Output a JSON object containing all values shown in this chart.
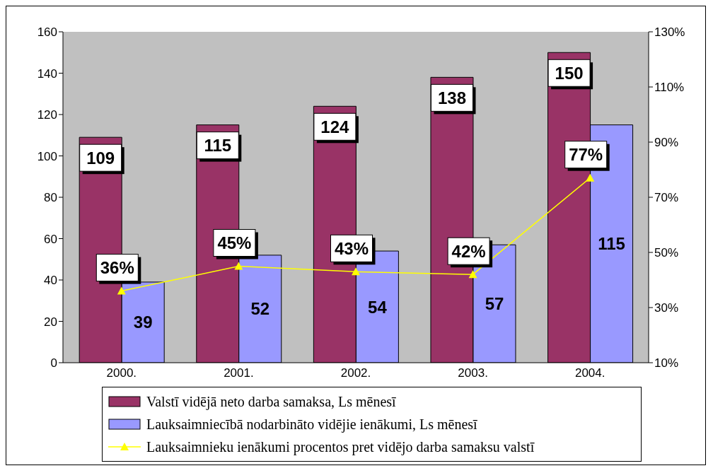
{
  "chart_data": {
    "type": "bar",
    "categories": [
      "2000.",
      "2001.",
      "2002.",
      "2003.",
      "2004."
    ],
    "series": [
      {
        "name": "Valstī vidējā neto darba samaksa, Ls mēnesī",
        "color": "#993366",
        "values": [
          109,
          115,
          124,
          138,
          150
        ],
        "value_labels": [
          "109",
          "115",
          "124",
          "138",
          "150"
        ]
      },
      {
        "name": "Lauksaimniecībā nodarbināto vidējie ienākumi, Ls mēnesī",
        "color": "#9999ff",
        "values": [
          39,
          52,
          54,
          57,
          115
        ],
        "value_labels": [
          "39",
          "52",
          "54",
          "57",
          "115"
        ]
      },
      {
        "name": "Lauksaimnieku ienākumi procentos pret vidējo darba samaksu valstī",
        "type": "line",
        "axis": "y2",
        "color": "#ffff00",
        "marker": "triangle",
        "values": [
          36,
          45,
          43,
          42,
          77
        ],
        "value_labels": [
          "36%",
          "45%",
          "43%",
          "42%",
          "77%"
        ]
      }
    ],
    "ylim": [
      0,
      160
    ],
    "yticks": [
      0,
      20,
      40,
      60,
      80,
      100,
      120,
      140,
      160
    ],
    "y2lim": [
      10,
      130
    ],
    "y2ticks": [
      {
        "value": 10,
        "label": "10%"
      },
      {
        "value": 30,
        "label": "30%"
      },
      {
        "value": 50,
        "label": "50%"
      },
      {
        "value": 70,
        "label": "70%"
      },
      {
        "value": 90,
        "label": "90%"
      },
      {
        "value": 110,
        "label": "110%"
      },
      {
        "value": 130,
        "label": "130%"
      }
    ],
    "legend": "bottom"
  }
}
